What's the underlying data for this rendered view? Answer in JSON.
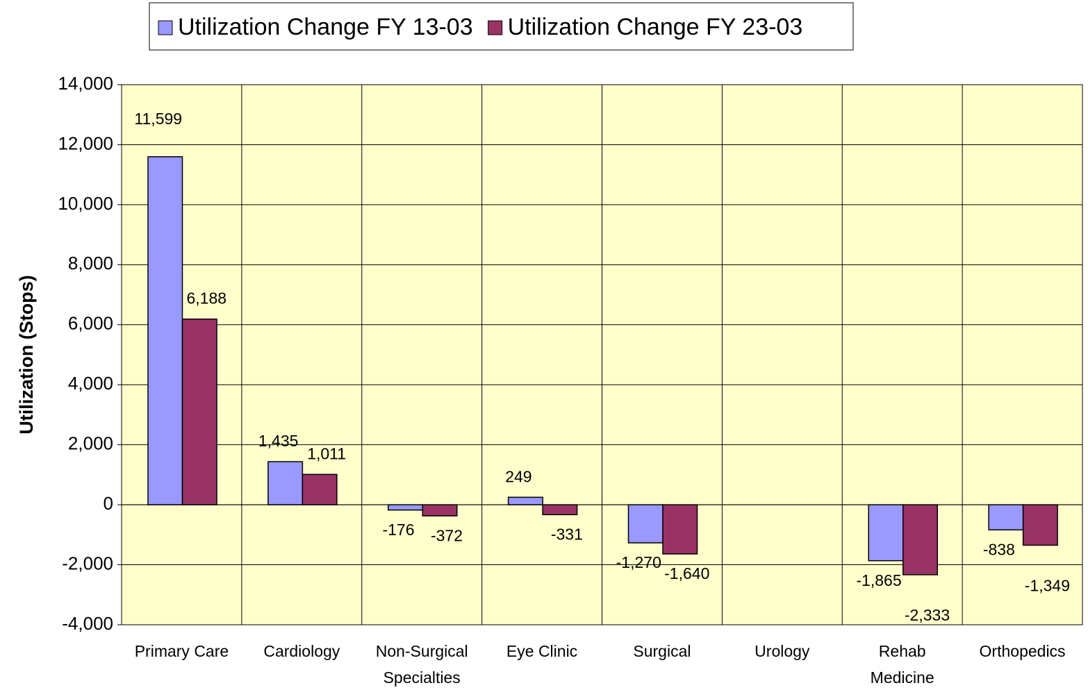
{
  "chart_data": {
    "type": "bar",
    "y_label": "Utilization (Stops)",
    "categories": [
      "Primary Care",
      "Cardiology",
      "Non-Surgical Specialties",
      "Eye Clinic",
      "Surgical",
      "Urology",
      "Rehab Medicine",
      "Orthopedics"
    ],
    "series": [
      {
        "name": "Utilization Change FY 13-03",
        "color": "#9999ff",
        "values": [
          11599,
          1435,
          -176,
          249,
          -1270,
          null,
          -1865,
          -838
        ],
        "value_labels": [
          "11,599",
          "1,435",
          "-176",
          "249",
          "-1,270",
          null,
          "-1,865",
          "-838"
        ]
      },
      {
        "name": "Utilization Change FY 23-03",
        "color": "#993366",
        "values": [
          6188,
          1011,
          -372,
          -331,
          -1640,
          null,
          -2333,
          -1349
        ],
        "value_labels": [
          "6,188",
          "1,011",
          "-372",
          "-331",
          "-1,640",
          null,
          "-2,333",
          "-1,349"
        ]
      }
    ],
    "ylim": [
      -4000,
      14000
    ],
    "yticks": [
      {
        "value": -4000,
        "label": "-4,000"
      },
      {
        "value": -2000,
        "label": "-2,000"
      },
      0,
      {
        "value": 2000,
        "label": "2,000"
      },
      {
        "value": 4000,
        "label": "4,000"
      },
      {
        "value": 6000,
        "label": "6,000"
      },
      {
        "value": 8000,
        "label": "8,000"
      },
      {
        "value": 10000,
        "label": "10,000"
      },
      {
        "value": 12000,
        "label": "12,000"
      },
      {
        "value": 14000,
        "label": "14,000"
      }
    ],
    "grid": true,
    "legend": "top"
  }
}
